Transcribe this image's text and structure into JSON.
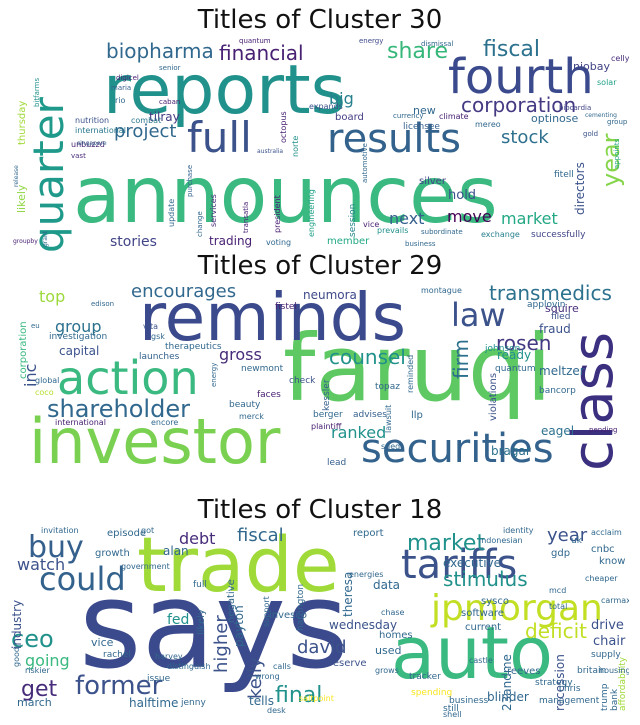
{
  "panels": [
    {
      "title": "Titles of Cluster 30",
      "words": [
        "announces",
        "reports",
        "fourth",
        "results",
        "quarter",
        "full",
        "corporation",
        "fiscal",
        "share",
        "year",
        "financial",
        "biopharma",
        "project",
        "stock",
        "stories",
        "market",
        "move",
        "next",
        "big",
        "directors",
        "trading",
        "member",
        "hold",
        "likely",
        "thursday",
        "board",
        "tilray",
        "session",
        "niobay",
        "exchange",
        "optinose",
        "fitell",
        "licensee",
        "new",
        "celly",
        "solar",
        "group",
        "quantum",
        "energy",
        "dismissal",
        "senior",
        "caban",
        "combat",
        "nutrition",
        "international",
        "unbuzzd",
        "transatla",
        "engineering",
        "president",
        "services",
        "update",
        "silver",
        "prevails",
        "vice",
        "business",
        "successfully",
        "currency",
        "climate",
        "mereo",
        "maria",
        "rio",
        "digicel",
        "voting",
        "bitfarms",
        "vast",
        "grant",
        "biocardia",
        "cementing",
        "gold",
        "appoints",
        "automotive",
        "singapore",
        "australia",
        "change",
        "purchase",
        "subordinate",
        "release",
        "groupby",
        "expands",
        "norte",
        "octopus"
      ]
    },
    {
      "title": "Titles of Cluster 29",
      "words": [
        "faruqi",
        "reminds",
        "investor",
        "class",
        "action",
        "securities",
        "law",
        "shareholder",
        "transmedics",
        "encourages",
        "firm",
        "rosen",
        "counsel",
        "ranked",
        "group",
        "inc",
        "top",
        "gross",
        "capital",
        "neumora",
        "corporation",
        "bragar",
        "eagel",
        "squire",
        "fraud",
        "ready",
        "filed",
        "applovin",
        "quantum",
        "meltzer",
        "johnson",
        "bancorp",
        "violations",
        "llp",
        "topaz",
        "kessler",
        "berger",
        "advises",
        "investigation",
        "therapeutics",
        "launches",
        "newmont",
        "fistel",
        "montague",
        "reminded",
        "faces",
        "beauty",
        "check",
        "lawsuit",
        "plaintiff",
        "sued",
        "pending",
        "lead",
        "international",
        "encore",
        "merck",
        "vita",
        "gsk",
        "global",
        "coco",
        "edison",
        "eu",
        "energy"
      ]
    },
    {
      "title": "Titles of Cluster 18",
      "words": [
        "says",
        "trade",
        "auto",
        "tariffs",
        "jpmorgan",
        "could",
        "buy",
        "market",
        "former",
        "ceo",
        "get",
        "final",
        "stimulus",
        "deficit",
        "year",
        "david",
        "fiscal",
        "debt",
        "watch",
        "kelly",
        "higher",
        "going",
        "industry",
        "executive",
        "wednesday",
        "recession",
        "drive",
        "chair",
        "tells",
        "halftime",
        "alan",
        "growth",
        "episode",
        "reserve",
        "report",
        "data",
        "fed",
        "payton",
        "reeves",
        "blinder",
        "23andme",
        "theresa",
        "cnbc",
        "know",
        "gdp",
        "sysco",
        "software",
        "current",
        "vice",
        "likely",
        "negative",
        "invesco",
        "harrington",
        "homes",
        "used",
        "strategy",
        "britain",
        "bank",
        "issue",
        "rachel",
        "march",
        "jenny",
        "government",
        "support",
        "uk",
        "supply",
        "spending",
        "tracker",
        "business",
        "still",
        "management",
        "chris",
        "trump",
        "affordability",
        "invitation",
        "got",
        "full",
        "harvey",
        "distinguish",
        "cheaper",
        "carmax",
        "acclaim",
        "identity",
        "indonesian",
        "total",
        "housing",
        "good",
        "riskier",
        "saltpoint",
        "shell",
        "chase",
        "energies",
        "mcd",
        "castle",
        "wrong",
        "calls",
        "desk",
        "grows"
      ]
    }
  ]
}
